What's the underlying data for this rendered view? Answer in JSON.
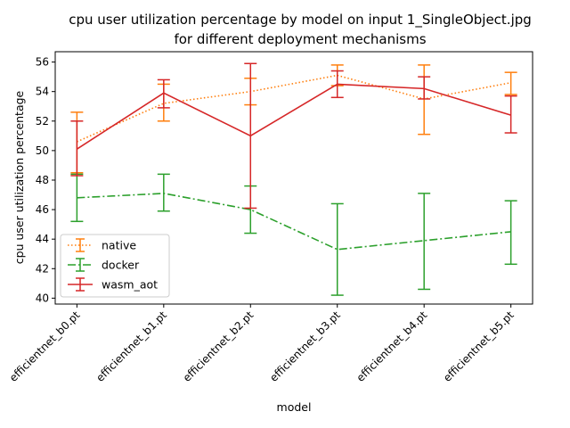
{
  "chart_data": {
    "type": "line",
    "title": "cpu user utilization percentage by model on input 1_SingleObject.jpg",
    "subtitle": "for different deployment mechanisms",
    "xlabel": "model",
    "ylabel": "cpu user utilization percentage",
    "categories": [
      "efficientnet_b0.pt",
      "efficientnet_b1.pt",
      "efficientnet_b2.pt",
      "efficientnet_b3.pt",
      "efficientnet_b4.pt",
      "efficientnet_b5.pt"
    ],
    "ylim": [
      39.6,
      56.7
    ],
    "yticks": [
      40,
      42,
      44,
      46,
      48,
      50,
      52,
      54,
      56
    ],
    "grid": false,
    "legend_position": "lower-left",
    "series": [
      {
        "name": "native",
        "color": "#ff7f0e",
        "linestyle": "dotted",
        "values": [
          50.6,
          53.2,
          54.0,
          55.1,
          53.5,
          54.6
        ],
        "err_low": [
          48.5,
          52.0,
          53.1,
          54.4,
          51.1,
          53.8
        ],
        "err_high": [
          52.6,
          54.5,
          54.9,
          55.8,
          55.8,
          55.3
        ]
      },
      {
        "name": "docker",
        "color": "#2ca02c",
        "linestyle": "dashdot",
        "values": [
          46.8,
          47.1,
          46.0,
          43.3,
          43.9,
          44.5
        ],
        "err_low": [
          45.2,
          45.9,
          44.4,
          40.2,
          40.6,
          42.3
        ],
        "err_high": [
          48.4,
          48.4,
          47.6,
          46.4,
          47.1,
          46.6
        ]
      },
      {
        "name": "wasm_aot",
        "color": "#d62728",
        "linestyle": "solid",
        "values": [
          50.1,
          53.9,
          51.0,
          54.5,
          54.2,
          52.4
        ],
        "err_low": [
          48.3,
          52.9,
          46.1,
          53.6,
          53.5,
          51.2
        ],
        "err_high": [
          52.0,
          54.8,
          55.9,
          55.4,
          55.0,
          53.7
        ]
      }
    ]
  }
}
